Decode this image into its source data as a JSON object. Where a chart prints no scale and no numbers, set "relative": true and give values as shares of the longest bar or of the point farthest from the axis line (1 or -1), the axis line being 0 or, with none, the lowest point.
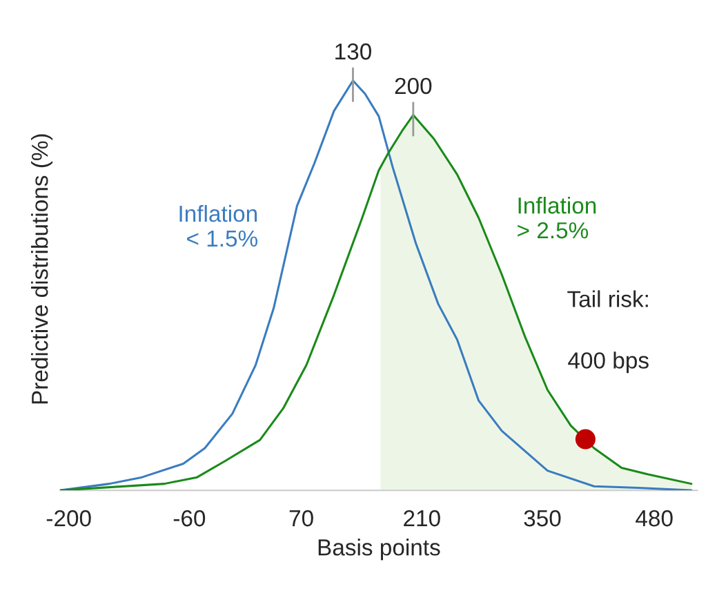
{
  "chart_data": {
    "type": "line",
    "relative": true,
    "xlabel": "Basis points",
    "ylabel": "Predictive distributions (%)",
    "xlim": [
      -210,
      530
    ],
    "xticks": [
      -200,
      -60,
      70,
      210,
      350,
      480
    ],
    "grid": false,
    "legend": false,
    "line_style": "solid",
    "series": [
      {
        "name": "Inflation\n< 1.5%",
        "color": "#3a7cc0",
        "x": [
          -210,
          -153,
          -115,
          -67,
          -42,
          -10,
          17,
          38,
          65,
          85,
          108,
          130,
          144,
          160,
          176,
          203,
          229,
          251,
          276,
          303,
          356,
          410,
          462,
          523
        ],
        "values": [
          0,
          0.016,
          0.032,
          0.065,
          0.103,
          0.187,
          0.306,
          0.445,
          0.694,
          0.797,
          0.926,
          1.0,
          0.968,
          0.913,
          0.79,
          0.603,
          0.455,
          0.368,
          0.219,
          0.145,
          0.048,
          0.01,
          0.006,
          0
        ]
      },
      {
        "name": "Inflation\n> 2.5%",
        "color": "#1a8a1a",
        "x": [
          -210,
          -89,
          -51,
          -19,
          22,
          49,
          76,
          108,
          140,
          160,
          171,
          187,
          200,
          224,
          251,
          276,
          303,
          330,
          356,
          383,
          410,
          442,
          473,
          523
        ],
        "values": [
          0,
          0.016,
          0.032,
          0.071,
          0.123,
          0.2,
          0.306,
          0.477,
          0.661,
          0.781,
          0.823,
          0.877,
          0.916,
          0.858,
          0.771,
          0.665,
          0.526,
          0.374,
          0.245,
          0.158,
          0.103,
          0.055,
          0.039,
          0.016
        ]
      },
      {
        "type": "area",
        "color": "#edf6e6",
        "x": [
          162,
          171,
          187,
          200,
          224,
          251,
          276,
          303,
          330,
          356,
          383,
          410,
          442,
          473,
          523
        ],
        "values": [
          0.785,
          0.823,
          0.877,
          0.916,
          0.858,
          0.771,
          0.665,
          0.526,
          0.374,
          0.245,
          0.158,
          0.103,
          0.055,
          0.039,
          0.016
        ]
      },
      {
        "type": "scatter",
        "marker": "circle",
        "color": "#c00000",
        "x": [
          400
        ],
        "values": [
          0.125
        ]
      }
    ],
    "annotations": [
      {
        "text": "130",
        "x": 130,
        "y": 1.0
      },
      {
        "text": "200",
        "x": 200,
        "y": 0.916
      },
      "Tail risk:",
      "400 bps"
    ]
  }
}
